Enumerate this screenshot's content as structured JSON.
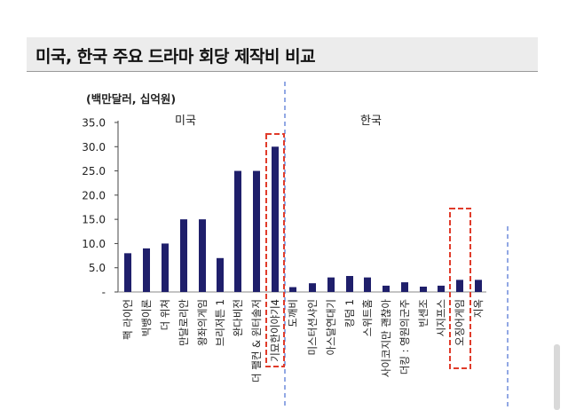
{
  "header": {
    "title": "미국, 한국 주요 드라마 회당 제작비 비교"
  },
  "chart_data": {
    "type": "bar",
    "unit_label": "(백만달러, 십억원)",
    "group_labels": [
      "미국",
      "한국"
    ],
    "yticks": [
      "35.0",
      "30.0",
      "25.0",
      "20.0",
      "15.0",
      "10.0",
      "5.0",
      "-"
    ],
    "ylim": [
      0,
      35
    ],
    "categories": [
      "팩 라이언",
      "빅뱅이론",
      "더 위쳐",
      "만달로리안",
      "왕좌의게임",
      "브리저튼 1",
      "완다비전",
      "더 팰컨 & 윈터솔저",
      "기묘한이야기4",
      "도깨비",
      "미스터션샤인",
      "아스달연대기",
      "킹덤 1",
      "스위트홈",
      "사이코지만 괜찮아",
      "더킹 : 영원의군주",
      "빈센조",
      "시지프스",
      "오징어게임",
      "지옥"
    ],
    "values": [
      8,
      9,
      10,
      15,
      15,
      7,
      25,
      25,
      30,
      1,
      1.8,
      3,
      3.3,
      3,
      1.3,
      2,
      1.1,
      1.3,
      2.5,
      2.5
    ],
    "groups": [
      "미국",
      "미국",
      "미국",
      "미국",
      "미국",
      "미국",
      "미국",
      "미국",
      "미국",
      "한국",
      "한국",
      "한국",
      "한국",
      "한국",
      "한국",
      "한국",
      "한국",
      "한국",
      "한국",
      "한국"
    ],
    "highlighted": [
      "기묘한이야기4",
      "오징어게임"
    ],
    "bar_color": "#1f1f6b",
    "highlight_color": "#e03b2a",
    "divider_color": "#4a6fd1"
  }
}
